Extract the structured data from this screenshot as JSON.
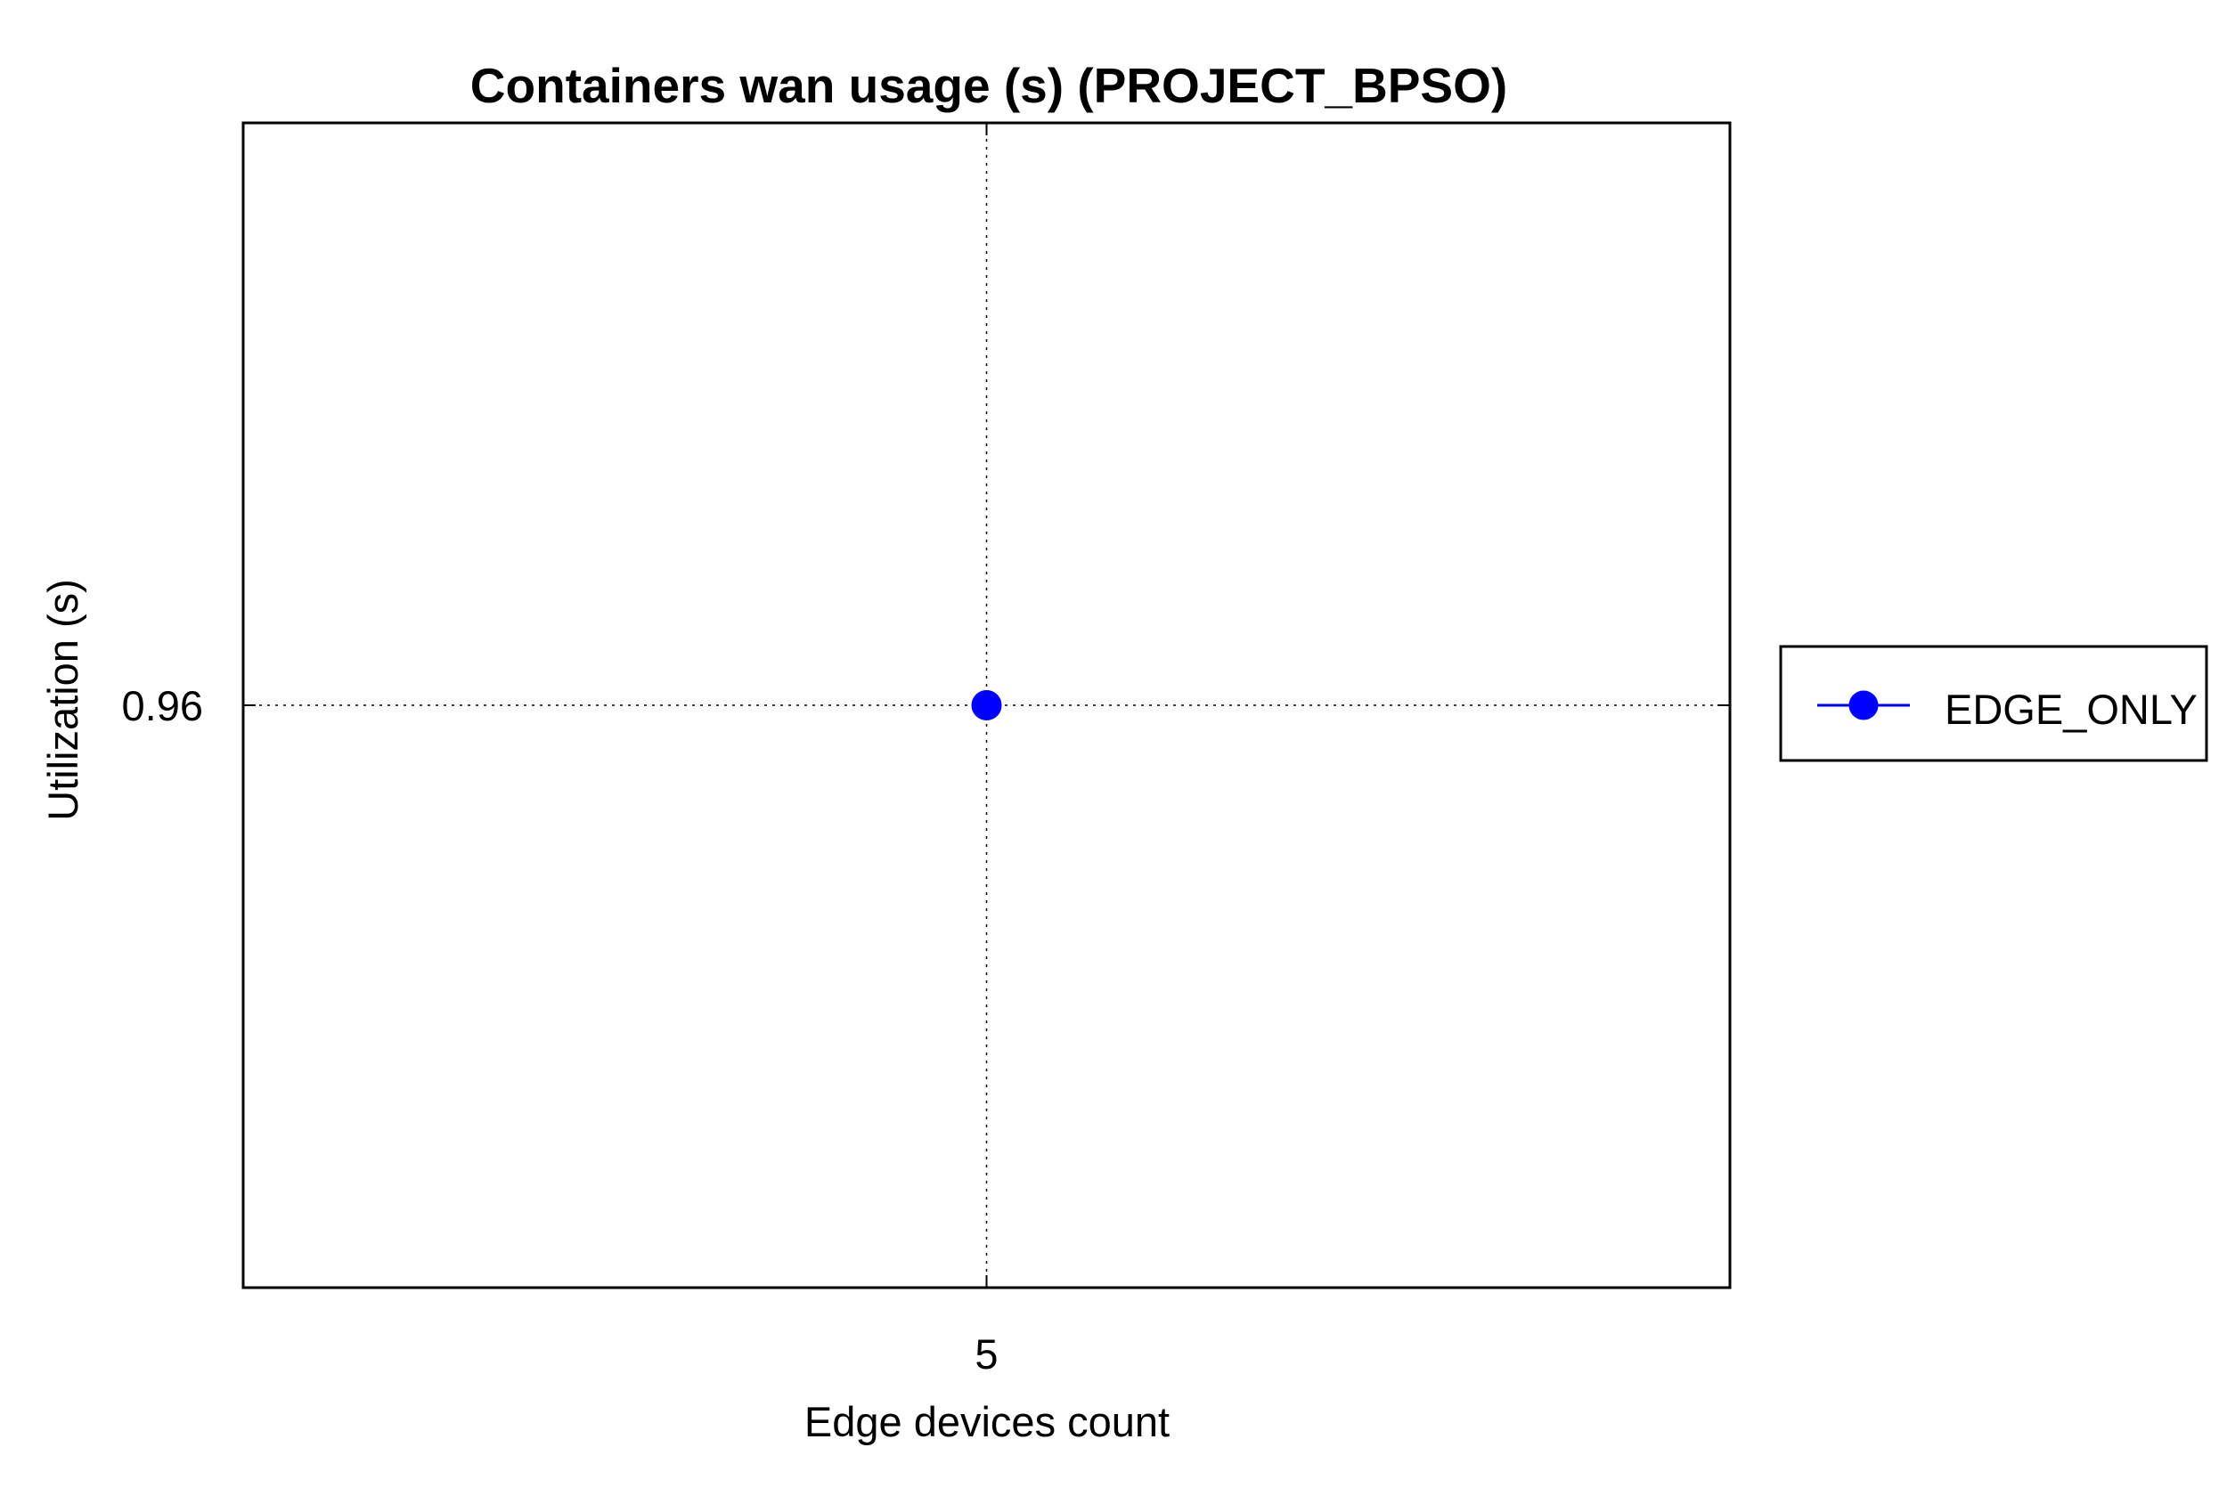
{
  "chart_data": {
    "type": "line",
    "title": "Containers wan usage (s) (PROJECT_BPSO)",
    "xlabel": "Edge devices count",
    "ylabel": "Utilization (s)",
    "x_ticks": [
      "5"
    ],
    "y_ticks": [
      "0.96"
    ],
    "x": [
      5
    ],
    "xlim": [
      4,
      6
    ],
    "ylim": [
      0.95,
      0.97
    ],
    "grid": true,
    "legend_position": "outside-right",
    "series": [
      {
        "name": "EDGE_ONLY",
        "x": [
          5
        ],
        "values": [
          0.96
        ],
        "color": "#0000ff",
        "marker": "circle"
      }
    ]
  }
}
